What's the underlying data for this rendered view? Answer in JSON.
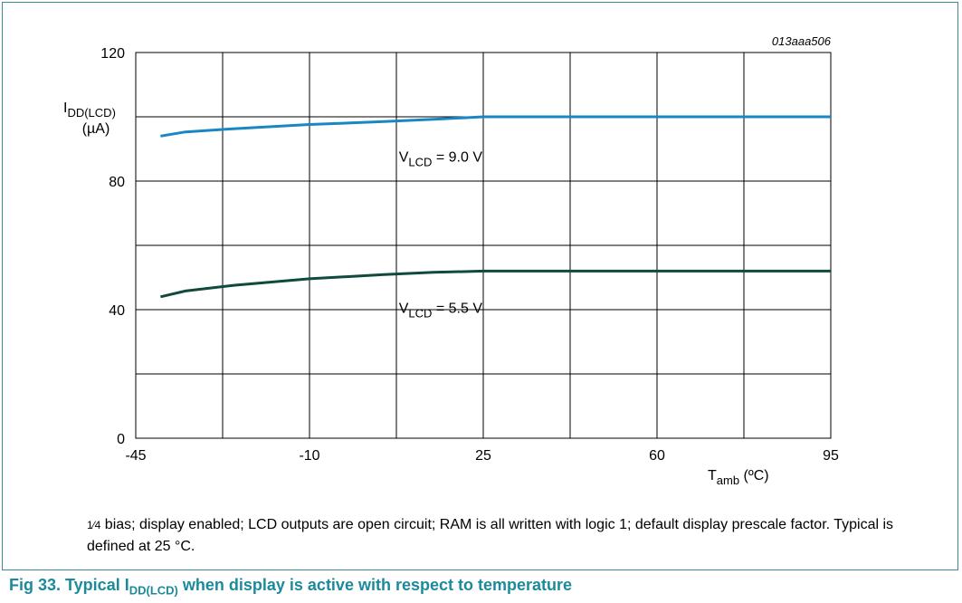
{
  "figure_code": "013aaa506",
  "note": {
    "fraction": "1⁄4",
    "text": " bias; display enabled; LCD outputs are open circuit; RAM is all written with logic 1; default display prescale factor. Typical is defined at 25 °C."
  },
  "caption": {
    "prefix": "Fig 33.   Typical I",
    "subscript": "DD(LCD)",
    "suffix": " when display is active with respect to temperature"
  },
  "colors": {
    "frame": "#3a8a97",
    "caption": "#1d8a9c",
    "series_9v": "#1b86c4",
    "series_5v5": "#0f4a3c"
  },
  "chart_data": {
    "type": "line",
    "ylabel": {
      "main": "I",
      "sub": "DD(LCD)",
      "unit": "(µA)"
    },
    "xlabel": {
      "main": "T",
      "sub": "amb",
      "unit": " (ºC)"
    },
    "xlim": [
      -45,
      95
    ],
    "ylim": [
      0,
      120
    ],
    "xticks": [
      "-45",
      "-10",
      "25",
      "60",
      "95"
    ],
    "yticks": [
      "0",
      "40",
      "80",
      "120"
    ],
    "grid": true,
    "series": [
      {
        "name_main": "V",
        "name_sub": "LCD",
        "name_rest": " = 9.0 V",
        "color": "#1b86c4",
        "points": [
          [
            -40,
            94
          ],
          [
            -35,
            95.3
          ],
          [
            -25,
            96.3
          ],
          [
            -10,
            97.6
          ],
          [
            5,
            98.5
          ],
          [
            15,
            99.2
          ],
          [
            25,
            100
          ],
          [
            95,
            100
          ]
        ]
      },
      {
        "name_main": "V",
        "name_sub": "LCD",
        "name_rest": " = 5.5 V",
        "color": "#0f4a3c",
        "points": [
          [
            -40,
            44
          ],
          [
            -35,
            45.8
          ],
          [
            -25,
            47.6
          ],
          [
            -10,
            49.6
          ],
          [
            5,
            50.9
          ],
          [
            15,
            51.6
          ],
          [
            25,
            52
          ],
          [
            95,
            52
          ]
        ]
      }
    ]
  }
}
